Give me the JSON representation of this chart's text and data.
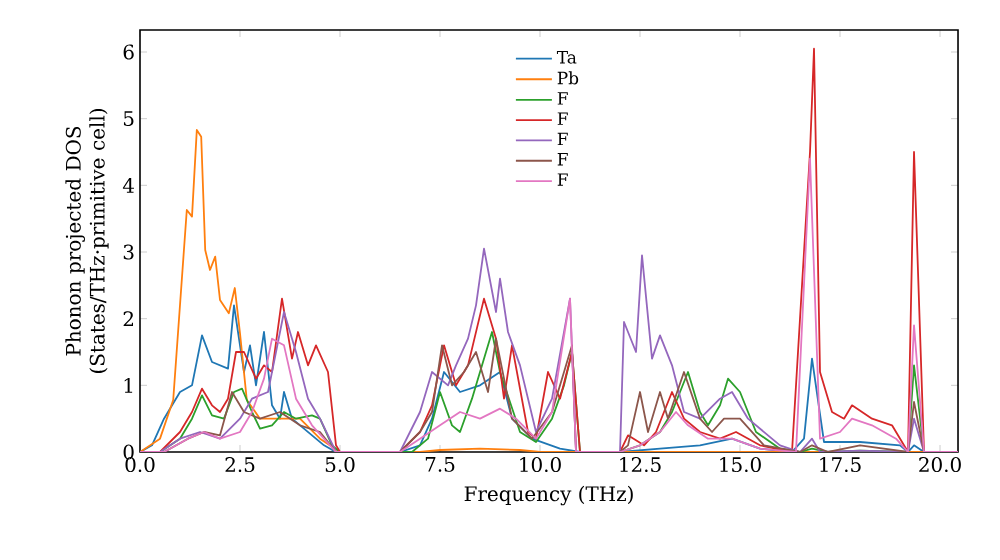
{
  "chart_data": {
    "type": "line",
    "xlabel": "Frequency (THz)",
    "ylabel": "Phonon projected DOS (States/THz·primitive cell)",
    "xlim": [
      0,
      20.45
    ],
    "ylim": [
      0,
      6.33
    ],
    "xticks": [
      {
        "value": 0,
        "label": "0.0"
      },
      {
        "value": 2.5,
        "label": "2.5"
      },
      {
        "value": 5,
        "label": "5.0"
      },
      {
        "value": 7.5,
        "label": "7.5"
      },
      {
        "value": 10,
        "label": "10.0"
      },
      {
        "value": 12.5,
        "label": "12.5"
      },
      {
        "value": 15,
        "label": "15.0"
      },
      {
        "value": 17.5,
        "label": "17.5"
      },
      {
        "value": 20,
        "label": "20.0"
      }
    ],
    "yticks": [
      0,
      1,
      2,
      3,
      4,
      5,
      6
    ],
    "legend": "top",
    "series": [
      {
        "name": "Ta",
        "color": "#1f77b4",
        "x": [
          0,
          0.3,
          0.6,
          1.0,
          1.3,
          1.55,
          1.8,
          2.2,
          2.35,
          2.6,
          2.75,
          2.9,
          3.1,
          3.3,
          3.5,
          3.6,
          3.8,
          4.2,
          4.6,
          4.9,
          6.5,
          7.0,
          7.3,
          7.6,
          8.0,
          8.5,
          9.0,
          9.3,
          9.8,
          10.5,
          11.0,
          12.0,
          13.0,
          14.0,
          14.8,
          15.5,
          16.3,
          16.6,
          16.8,
          17.1,
          18.0,
          19.0,
          19.2,
          19.35,
          19.6,
          20.45
        ],
        "values": [
          0,
          0.1,
          0.5,
          0.9,
          1.0,
          1.75,
          1.35,
          1.25,
          2.2,
          1.2,
          1.6,
          1.0,
          1.8,
          0.7,
          0.5,
          0.9,
          0.5,
          0.3,
          0.1,
          0,
          0,
          0.1,
          0.5,
          1.2,
          0.9,
          1.0,
          1.2,
          0.5,
          0.2,
          0.05,
          0,
          0,
          0.05,
          0.1,
          0.2,
          0.05,
          0,
          0.2,
          1.4,
          0.15,
          0.15,
          0.1,
          0,
          0.1,
          0,
          0
        ]
      },
      {
        "name": "Pb",
        "color": "#ff7f0e",
        "x": [
          0,
          0.5,
          0.83,
          1.17,
          1.3,
          1.42,
          1.53,
          1.63,
          1.75,
          1.88,
          2.0,
          2.22,
          2.37,
          2.5,
          2.67,
          3.0,
          3.5,
          4.0,
          4.5,
          5.0,
          7.0,
          7.5,
          8.5,
          9.5,
          10.0,
          20.45
        ],
        "values": [
          0,
          0.2,
          0.78,
          3.63,
          3.53,
          4.83,
          4.73,
          3.03,
          2.73,
          2.93,
          2.28,
          2.08,
          2.46,
          1.78,
          0.78,
          0.5,
          0.5,
          0.5,
          0.2,
          0,
          0,
          0.03,
          0.05,
          0.03,
          0,
          0
        ]
      },
      {
        "name": "F",
        "color": "#2ca02c",
        "x": [
          0,
          0.5,
          1.0,
          1.3,
          1.55,
          1.8,
          2.1,
          2.35,
          2.55,
          2.8,
          3.0,
          3.3,
          3.6,
          3.9,
          4.3,
          4.5,
          4.8,
          5.0,
          6.8,
          7.2,
          7.5,
          7.8,
          8.0,
          8.3,
          8.5,
          8.8,
          9.0,
          9.5,
          9.9,
          10.3,
          10.6,
          10.8,
          11.0,
          12.0,
          12.5,
          13.0,
          13.3,
          13.7,
          14.0,
          14.2,
          14.5,
          14.7,
          15.0,
          15.4,
          16.0,
          16.5,
          16.8,
          17.2,
          18.0,
          19.2,
          19.35,
          19.6,
          20.45
        ],
        "values": [
          0,
          0,
          0.2,
          0.5,
          0.85,
          0.55,
          0.5,
          0.9,
          0.95,
          0.6,
          0.35,
          0.4,
          0.6,
          0.5,
          0.55,
          0.5,
          0.1,
          0,
          0,
          0.2,
          0.9,
          0.4,
          0.3,
          0.8,
          1.2,
          1.8,
          1.2,
          0.3,
          0.15,
          0.5,
          1.0,
          1.5,
          0,
          0,
          0.1,
          0.3,
          0.6,
          1.2,
          0.6,
          0.4,
          0.7,
          1.1,
          0.9,
          0.3,
          0.05,
          0,
          0.05,
          0,
          0.02,
          0,
          1.3,
          0,
          0
        ]
      },
      {
        "name": "F",
        "color": "#d62728",
        "x": [
          0,
          0.5,
          1.0,
          1.3,
          1.55,
          1.8,
          2.0,
          2.2,
          2.4,
          2.6,
          2.9,
          3.1,
          3.3,
          3.55,
          3.8,
          3.95,
          4.2,
          4.4,
          4.7,
          4.9,
          5.0,
          6.5,
          7.0,
          7.3,
          7.6,
          7.9,
          8.2,
          8.6,
          8.9,
          9.1,
          9.3,
          9.7,
          9.9,
          10.2,
          10.5,
          10.8,
          11.0,
          12.0,
          12.2,
          12.6,
          12.9,
          13.3,
          13.6,
          14.0,
          14.5,
          14.9,
          15.5,
          16.3,
          16.75,
          16.85,
          17.0,
          17.3,
          17.6,
          17.8,
          18.3,
          18.8,
          19.2,
          19.35,
          19.6,
          20.45
        ],
        "values": [
          0,
          0,
          0.3,
          0.6,
          0.95,
          0.7,
          0.6,
          0.8,
          1.5,
          1.5,
          1.1,
          1.3,
          1.2,
          2.3,
          1.4,
          1.8,
          1.3,
          1.6,
          1.2,
          0.1,
          0,
          0,
          0.3,
          0.7,
          1.6,
          1.0,
          1.3,
          2.3,
          1.7,
          0.8,
          1.6,
          0.3,
          0.2,
          1.2,
          0.8,
          1.5,
          0,
          0,
          0.25,
          0.1,
          0.3,
          0.9,
          0.5,
          0.3,
          0.2,
          0.3,
          0.1,
          0,
          4.5,
          6.05,
          1.2,
          0.6,
          0.5,
          0.7,
          0.5,
          0.4,
          0,
          4.5,
          0,
          0
        ]
      },
      {
        "name": "F",
        "color": "#9467bd",
        "x": [
          0,
          0.5,
          1.0,
          1.5,
          2.0,
          2.5,
          2.8,
          3.2,
          3.4,
          3.6,
          3.9,
          4.2,
          4.5,
          4.9,
          6.5,
          7.0,
          7.3,
          7.7,
          7.9,
          8.2,
          8.4,
          8.6,
          8.9,
          9.0,
          9.2,
          9.5,
          9.9,
          10.3,
          10.75,
          10.9,
          12.0,
          12.1,
          12.4,
          12.55,
          12.8,
          13.0,
          13.3,
          13.6,
          14.0,
          14.5,
          14.8,
          15.2,
          16.0,
          16.5,
          16.8,
          17.0,
          18.0,
          19.2,
          19.35,
          19.6,
          20.45
        ],
        "values": [
          0,
          0,
          0.2,
          0.3,
          0.2,
          0.5,
          0.8,
          0.9,
          1.5,
          2.1,
          1.5,
          0.8,
          0.5,
          0,
          0,
          0.6,
          1.2,
          1.0,
          1.3,
          1.7,
          2.2,
          3.05,
          2.1,
          2.6,
          1.8,
          1.3,
          0.3,
          0.8,
          2.3,
          0,
          0,
          1.95,
          1.5,
          2.95,
          1.4,
          1.75,
          1.3,
          0.6,
          0.5,
          0.8,
          0.9,
          0.5,
          0.1,
          0,
          0.2,
          0,
          0.02,
          0,
          0.5,
          0,
          0
        ]
      },
      {
        "name": "F",
        "color": "#8c564b",
        "x": [
          0,
          0.6,
          1.2,
          1.6,
          2.0,
          2.3,
          2.6,
          3.0,
          3.5,
          4.0,
          4.5,
          4.9,
          6.5,
          7.0,
          7.3,
          7.55,
          7.8,
          8.1,
          8.4,
          8.7,
          8.9,
          9.3,
          9.8,
          10.3,
          10.6,
          10.8,
          10.9,
          12.0,
          12.2,
          12.5,
          12.7,
          13.0,
          13.2,
          13.6,
          14.0,
          14.3,
          14.6,
          15.0,
          15.6,
          16.5,
          16.8,
          17.2,
          18.0,
          19.2,
          19.35,
          19.6,
          20.45
        ],
        "values": [
          0,
          0,
          0.2,
          0.3,
          0.25,
          0.9,
          0.6,
          0.5,
          0.6,
          0.4,
          0.3,
          0,
          0,
          0.3,
          0.6,
          1.6,
          1.0,
          1.2,
          1.5,
          0.9,
          1.7,
          0.5,
          0.2,
          0.6,
          1.2,
          1.6,
          0,
          0,
          0.1,
          0.9,
          0.3,
          0.9,
          0.5,
          1.2,
          0.5,
          0.3,
          0.5,
          0.5,
          0.1,
          0,
          0.1,
          0,
          0.1,
          0,
          0.75,
          0,
          0
        ]
      },
      {
        "name": "F",
        "color": "#e377c2",
        "x": [
          0,
          0.6,
          1.2,
          1.6,
          2.0,
          2.5,
          2.8,
          3.1,
          3.3,
          3.6,
          3.9,
          4.3,
          4.9,
          6.5,
          7.0,
          7.5,
          8.0,
          8.5,
          9.0,
          9.4,
          9.9,
          10.3,
          10.75,
          10.9,
          12.0,
          12.5,
          13.0,
          13.4,
          13.7,
          14.2,
          14.8,
          15.5,
          16.4,
          16.75,
          17.0,
          17.5,
          17.8,
          18.3,
          18.9,
          19.2,
          19.35,
          19.6,
          20.45
        ],
        "values": [
          0,
          0,
          0.2,
          0.3,
          0.2,
          0.3,
          0.6,
          1.1,
          1.7,
          1.6,
          0.8,
          0.4,
          0,
          0,
          0.2,
          0.4,
          0.6,
          0.5,
          0.65,
          0.5,
          0.2,
          0.6,
          2.3,
          0,
          0,
          0.1,
          0.3,
          0.6,
          0.4,
          0.2,
          0.2,
          0.05,
          0,
          4.4,
          0.2,
          0.3,
          0.5,
          0.4,
          0.2,
          0,
          1.9,
          0,
          0
        ]
      }
    ]
  }
}
